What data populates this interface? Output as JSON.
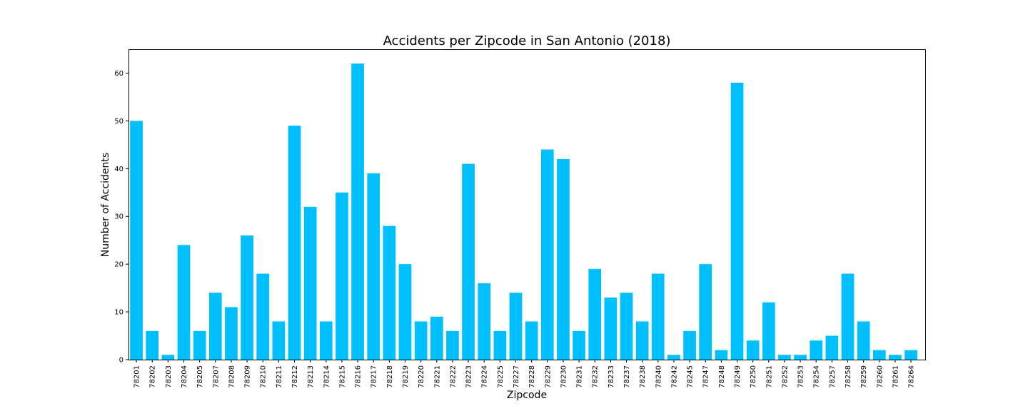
{
  "chart_data": {
    "type": "bar",
    "title": "Accidents per Zipcode in San Antonio (2018)",
    "xlabel": "Zipcode",
    "ylabel": "Number of Accidents",
    "ylim": [
      0,
      65
    ],
    "yticks": [
      0,
      10,
      20,
      30,
      40,
      50,
      60
    ],
    "grid": false,
    "color": "#00bfff",
    "categories": [
      "78201",
      "78202",
      "78203",
      "78204",
      "78205",
      "78207",
      "78208",
      "78209",
      "78210",
      "78211",
      "78212",
      "78213",
      "78214",
      "78215",
      "78216",
      "78217",
      "78218",
      "78219",
      "78220",
      "78221",
      "78222",
      "78223",
      "78224",
      "78225",
      "78227",
      "78228",
      "78229",
      "78230",
      "78231",
      "78232",
      "78233",
      "78237",
      "78238",
      "78240",
      "78242",
      "78245",
      "78247",
      "78248",
      "78249",
      "78250",
      "78251",
      "78252",
      "78253",
      "78254",
      "78257",
      "78258",
      "78259",
      "78260",
      "78261",
      "78264"
    ],
    "values": [
      50,
      6,
      1,
      24,
      6,
      14,
      11,
      26,
      18,
      8,
      49,
      32,
      8,
      35,
      62,
      39,
      28,
      20,
      8,
      9,
      6,
      41,
      16,
      6,
      14,
      8,
      44,
      42,
      6,
      19,
      13,
      14,
      8,
      18,
      1,
      6,
      20,
      2,
      58,
      4,
      12,
      1,
      1,
      4,
      5,
      18,
      8,
      2,
      1,
      2
    ]
  }
}
